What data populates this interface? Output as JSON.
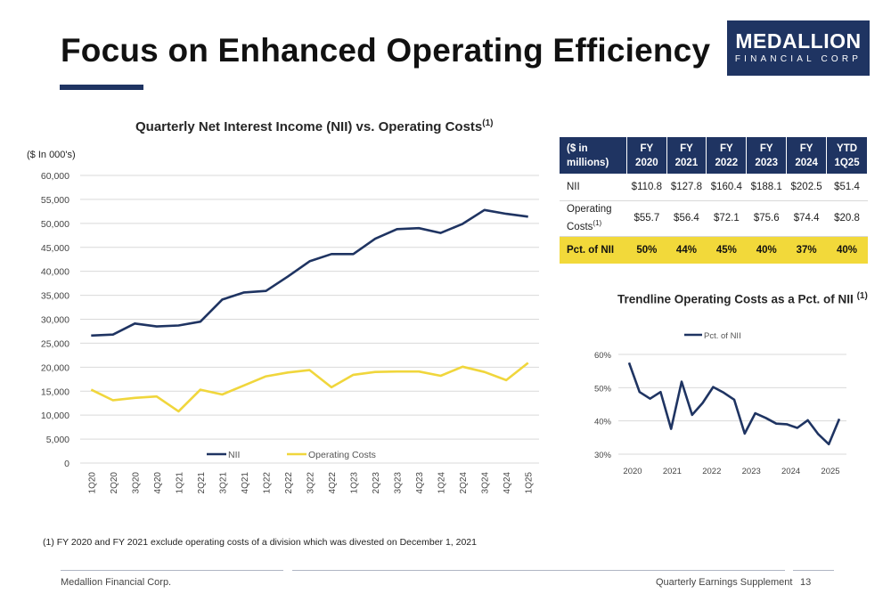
{
  "header": {
    "title": "Focus on Enhanced Operating Efficiency",
    "logo_main": "MEDALLION",
    "logo_sub": "FINANCIAL CORP",
    "accent": "#1f3462"
  },
  "chart_data": [
    {
      "type": "line",
      "title": "Quarterly Net Interest Income (NII) vs. Operating Costs",
      "title_sup": "(1)",
      "ylabel": "($ In 000's)",
      "ylim": [
        0,
        60000
      ],
      "yticks": [
        "0",
        "5,000",
        "10,000",
        "15,000",
        "20,000",
        "25,000",
        "30,000",
        "35,000",
        "40,000",
        "45,000",
        "50,000",
        "55,000",
        "60,000"
      ],
      "grid": true,
      "legend_position": "bottom",
      "categories": [
        "1Q20",
        "2Q20",
        "3Q20",
        "4Q20",
        "1Q21",
        "2Q21",
        "3Q21",
        "4Q21",
        "1Q22",
        "2Q22",
        "3Q22",
        "4Q22",
        "1Q23",
        "2Q23",
        "3Q23",
        "4Q23",
        "1Q24",
        "2Q24",
        "3Q24",
        "4Q24",
        "1Q25"
      ],
      "series": [
        {
          "name": "NII",
          "color": "#1f3462",
          "values": [
            26600,
            26800,
            29100,
            28500,
            28700,
            29500,
            34100,
            35600,
            35900,
            38900,
            42100,
            43600,
            43600,
            46800,
            48800,
            49000,
            48000,
            49900,
            52800,
            52000,
            51400
          ]
        },
        {
          "name": "Operating Costs",
          "color": "#f0d63c",
          "values": [
            15300,
            13100,
            13600,
            13900,
            10800,
            15300,
            14300,
            16200,
            18100,
            18900,
            19400,
            15800,
            18400,
            19000,
            19100,
            19100,
            18200,
            20100,
            19000,
            17300,
            20900
          ]
        }
      ]
    },
    {
      "type": "line",
      "title": "Trendline Operating Costs as a Pct. of NII",
      "title_sup": "(1)",
      "ylim": [
        0.3,
        0.6
      ],
      "yticks": [
        "30%",
        "40%",
        "50%",
        "60%"
      ],
      "xtick_labels": [
        "2020",
        "2021",
        "2022",
        "2023",
        "2024",
        "2025"
      ],
      "grid": true,
      "legend_position": "top",
      "series": [
        {
          "name": "Pct. of NII",
          "color": "#1f3462",
          "values": [
            0.575,
            0.487,
            0.467,
            0.487,
            0.376,
            0.518,
            0.418,
            0.454,
            0.502,
            0.485,
            0.464,
            0.362,
            0.423,
            0.409,
            0.392,
            0.39,
            0.379,
            0.402,
            0.36,
            0.33,
            0.406
          ]
        }
      ]
    }
  ],
  "table": {
    "headers": [
      "($ in millions)",
      "FY 2020",
      "FY 2021",
      "FY 2022",
      "FY 2023",
      "FY 2024",
      "YTD 1Q25"
    ],
    "rows": [
      {
        "label": "NII",
        "values": [
          "$110.8",
          "$127.8",
          "$160.4",
          "$188.1",
          "$202.5",
          "$51.4"
        ]
      },
      {
        "label": "Operating Costs",
        "label_sup": "(1)",
        "values": [
          "$55.7",
          "$56.4",
          "$72.1",
          "$75.6",
          "$74.4",
          "$20.8"
        ]
      },
      {
        "label": "Pct. of NII",
        "values": [
          "50%",
          "44%",
          "45%",
          "40%",
          "37%",
          "40%"
        ]
      }
    ],
    "highlight_color": "#f2d93a"
  },
  "footnote": "(1) FY 2020 and FY 2021 exclude operating costs of a division which was divested on December 1, 2021",
  "footer": {
    "left": "Medallion Financial Corp.",
    "right": "Quarterly Earnings Supplement",
    "page": "13"
  }
}
